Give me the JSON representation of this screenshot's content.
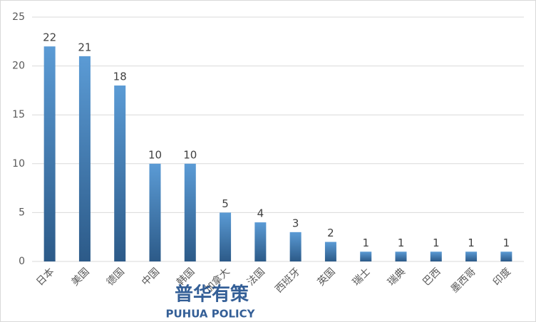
{
  "chart_data": {
    "type": "bar",
    "categories": [
      "日本",
      "美国",
      "德国",
      "中国",
      "韩国",
      "加拿大",
      "法国",
      "西班牙",
      "英国",
      "瑞士",
      "瑞典",
      "巴西",
      "墨西哥",
      "印度"
    ],
    "values": [
      22,
      21,
      18,
      10,
      10,
      5,
      4,
      3,
      2,
      1,
      1,
      1,
      1,
      1
    ],
    "color": "#5b9bd5",
    "ylim": [
      0,
      25
    ],
    "yticks": [
      0,
      5,
      10,
      15,
      20,
      25
    ],
    "grid": true,
    "watermark": {
      "title": "普华有策",
      "subtitle": "PUHUA POLICY"
    }
  }
}
